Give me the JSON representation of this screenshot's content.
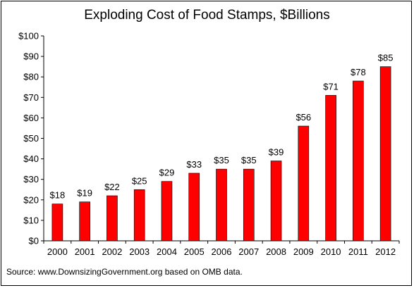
{
  "chart_data": {
    "type": "bar",
    "title": "Exploding Cost of Food Stamps, $Billions",
    "categories": [
      "2000",
      "2001",
      "2002",
      "2003",
      "2004",
      "2005",
      "2006",
      "2007",
      "2008",
      "2009",
      "2010",
      "2011",
      "2012"
    ],
    "values": [
      18,
      19,
      22,
      25,
      29,
      33,
      35,
      35,
      39,
      56,
      71,
      78,
      85
    ],
    "data_labels": [
      "$18",
      "$19",
      "$22",
      "$25",
      "$29",
      "$33",
      "$35",
      "$35",
      "$39",
      "$56",
      "$71",
      "$78",
      "$85"
    ],
    "y_ticks": [
      "$0",
      "$10",
      "$20",
      "$30",
      "$40",
      "$50",
      "$60",
      "$70",
      "$80",
      "$90",
      "$100"
    ],
    "ylim": [
      0,
      100
    ],
    "xlabel": "",
    "ylabel": "",
    "grid": false,
    "legend": false,
    "bar_color": "#ff0000",
    "source": "Source: www.DownsizingGovernment.org based on OMB data."
  }
}
